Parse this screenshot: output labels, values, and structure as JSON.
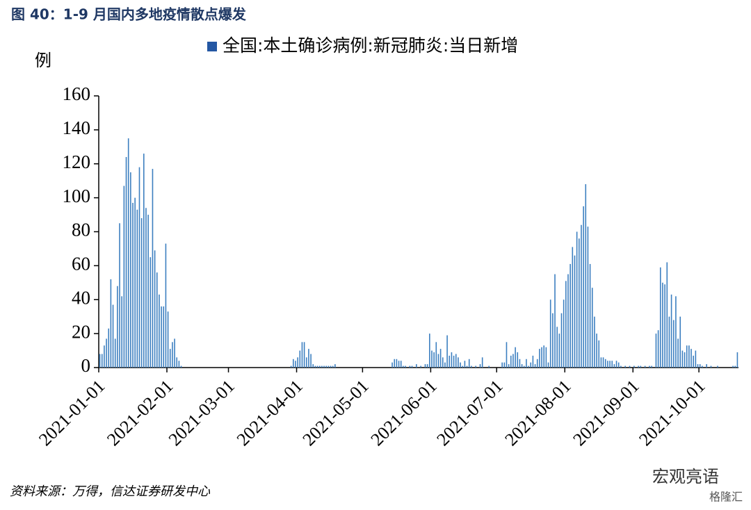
{
  "chart_data": {
    "type": "bar",
    "title": "图 40：1-9 月国内多地疫情散点爆发",
    "y_label": "例",
    "source": "资料来源：万得，信达证券研发中心",
    "watermark": [
      "宏观亮语",
      "格隆汇"
    ],
    "series": [
      {
        "name": "全国:本土确诊病例:新冠肺炎:当日新增",
        "color": "#3c7fc0",
        "legend_color": "#2457a3",
        "values": [
          8,
          8,
          13,
          17,
          23,
          52,
          37,
          17,
          48,
          85,
          42,
          107,
          124,
          135,
          115,
          97,
          100,
          93,
          118,
          88,
          126,
          94,
          90,
          65,
          117,
          69,
          56,
          43,
          36,
          36,
          73,
          33,
          11,
          15,
          17,
          6,
          4,
          1,
          0,
          0,
          0,
          0,
          0,
          0,
          0,
          0,
          0,
          0,
          0,
          0,
          0,
          0,
          0,
          0,
          0,
          0,
          0,
          0,
          0,
          0,
          0,
          0,
          0,
          0,
          0,
          0,
          0,
          0,
          0,
          0,
          0,
          0,
          0,
          0,
          0,
          0,
          0,
          0,
          0,
          0,
          0,
          0,
          0,
          0,
          0,
          0,
          0,
          1,
          5,
          4,
          6,
          10,
          15,
          15,
          6,
          11,
          8,
          2,
          1,
          1,
          1,
          1,
          1,
          1,
          1,
          1,
          1,
          2,
          0,
          0,
          0,
          0,
          0,
          0,
          0,
          0,
          0,
          0,
          0,
          0,
          0,
          0,
          0,
          0,
          0,
          0,
          0,
          0,
          0,
          0,
          0,
          0,
          0,
          3,
          5,
          5,
          4,
          4,
          1,
          1,
          0,
          1,
          1,
          0,
          2,
          0,
          1,
          0,
          2,
          2,
          20,
          10,
          9,
          15,
          8,
          11,
          6,
          3,
          19,
          7,
          9,
          7,
          8,
          6,
          3,
          1,
          4,
          1,
          5,
          1,
          0,
          1,
          0,
          2,
          6,
          0,
          0,
          1,
          0,
          0,
          0,
          0,
          0,
          3,
          3,
          15,
          2,
          7,
          8,
          12,
          9,
          5,
          2,
          1,
          5,
          1,
          3,
          7,
          2,
          5,
          11,
          12,
          13,
          12,
          3,
          40,
          32,
          55,
          24,
          20,
          32,
          40,
          51,
          55,
          61,
          71,
          66,
          80,
          76,
          84,
          95,
          108,
          83,
          61,
          47,
          30,
          20,
          16,
          6,
          6,
          5,
          4,
          4,
          4,
          2,
          4,
          3,
          1,
          0,
          1,
          0,
          1,
          0,
          1,
          0,
          1,
          1,
          0,
          1,
          0,
          1,
          1,
          0,
          20,
          22,
          59,
          50,
          49,
          62,
          30,
          43,
          28,
          42,
          17,
          30,
          10,
          9,
          13,
          13,
          11,
          7,
          10,
          2,
          2,
          1,
          0,
          2,
          0,
          1,
          0,
          0,
          1,
          0,
          0,
          0,
          0,
          0,
          0,
          1,
          1,
          9
        ]
      }
    ],
    "x": [
      "2021-01-01",
      "2021-01-02",
      "2021-01-03",
      "2021-01-04",
      "2021-01-05",
      "2021-01-06",
      "2021-01-07",
      "2021-01-08",
      "2021-01-09",
      "2021-01-10",
      "2021-01-11",
      "2021-01-12",
      "2021-01-13",
      "2021-01-14",
      "2021-01-15",
      "2021-01-16",
      "2021-01-17",
      "2021-01-18",
      "2021-01-19",
      "2021-01-20",
      "2021-01-21",
      "2021-01-22",
      "2021-01-23",
      "2021-01-24",
      "2021-01-25",
      "2021-01-26",
      "2021-01-27",
      "2021-01-28",
      "2021-01-29",
      "2021-01-30",
      "2021-01-31",
      "2021-02-01",
      "2021-02-02",
      "2021-02-03",
      "2021-02-04",
      "2021-02-05",
      "2021-02-06",
      "2021-02-07",
      "2021-02-08",
      "2021-02-09",
      "2021-02-10",
      "2021-02-11",
      "2021-02-12",
      "2021-02-13",
      "2021-02-14",
      "2021-02-15",
      "2021-02-16",
      "2021-02-17",
      "2021-02-18",
      "2021-02-19",
      "2021-02-20",
      "2021-02-21",
      "2021-02-22",
      "2021-02-23",
      "2021-02-24",
      "2021-02-25",
      "2021-02-26",
      "2021-02-27",
      "2021-02-28",
      "2021-03-01",
      "2021-03-02",
      "2021-03-03",
      "2021-03-04",
      "2021-03-05",
      "2021-03-06",
      "2021-03-07",
      "2021-03-08",
      "2021-03-09",
      "2021-03-10",
      "2021-03-11",
      "2021-03-12",
      "2021-03-13",
      "2021-03-14",
      "2021-03-15",
      "2021-03-16",
      "2021-03-17",
      "2021-03-18",
      "2021-03-19",
      "2021-03-20",
      "2021-03-21",
      "2021-03-22",
      "2021-03-23",
      "2021-03-24",
      "2021-03-25",
      "2021-03-26",
      "2021-03-27",
      "2021-03-28",
      "2021-03-29",
      "2021-03-30",
      "2021-03-31",
      "2021-04-01",
      "2021-04-02",
      "2021-04-03",
      "2021-04-04",
      "2021-04-05",
      "2021-04-06",
      "2021-04-07",
      "2021-04-08",
      "2021-04-09",
      "2021-04-10",
      "2021-04-11",
      "2021-04-12",
      "2021-04-13",
      "2021-04-14",
      "2021-04-15",
      "2021-04-16",
      "2021-04-17",
      "2021-04-18",
      "2021-04-19",
      "2021-04-20",
      "2021-04-21",
      "2021-04-22",
      "2021-04-23",
      "2021-04-24",
      "2021-04-25",
      "2021-04-26",
      "2021-04-27",
      "2021-04-28",
      "2021-04-29",
      "2021-04-30",
      "2021-05-01",
      "2021-05-02",
      "2021-05-03",
      "2021-05-04",
      "2021-05-05",
      "2021-05-06",
      "2021-05-07",
      "2021-05-08",
      "2021-05-09",
      "2021-05-10",
      "2021-05-11",
      "2021-05-12",
      "2021-05-13",
      "2021-05-14",
      "2021-05-15",
      "2021-05-16",
      "2021-05-17",
      "2021-05-18",
      "2021-05-19",
      "2021-05-20",
      "2021-05-21",
      "2021-05-22",
      "2021-05-23",
      "2021-05-24",
      "2021-05-25",
      "2021-05-26",
      "2021-05-27",
      "2021-05-28",
      "2021-05-29",
      "2021-05-30",
      "2021-05-31",
      "2021-06-01",
      "2021-06-02",
      "2021-06-03",
      "2021-06-04",
      "2021-06-05",
      "2021-06-06",
      "2021-06-07",
      "2021-06-08",
      "2021-06-09",
      "2021-06-10",
      "2021-06-11",
      "2021-06-12",
      "2021-06-13",
      "2021-06-14",
      "2021-06-15",
      "2021-06-16",
      "2021-06-17",
      "2021-06-18",
      "2021-06-19",
      "2021-06-20",
      "2021-06-21",
      "2021-06-22",
      "2021-06-23",
      "2021-06-24",
      "2021-06-25",
      "2021-06-26",
      "2021-06-27",
      "2021-06-28",
      "2021-06-29",
      "2021-06-30",
      "2021-07-01",
      "2021-07-02",
      "2021-07-03",
      "2021-07-04",
      "2021-07-05",
      "2021-07-06",
      "2021-07-07",
      "2021-07-08",
      "2021-07-09",
      "2021-07-10",
      "2021-07-11",
      "2021-07-12",
      "2021-07-13",
      "2021-07-14",
      "2021-07-15",
      "2021-07-16",
      "2021-07-17",
      "2021-07-18",
      "2021-07-19",
      "2021-07-20",
      "2021-07-21",
      "2021-07-22",
      "2021-07-23",
      "2021-07-24",
      "2021-07-25",
      "2021-07-26",
      "2021-07-27",
      "2021-07-28",
      "2021-07-29",
      "2021-07-30",
      "2021-07-31",
      "2021-08-01",
      "2021-08-02",
      "2021-08-03",
      "2021-08-04",
      "2021-08-05",
      "2021-08-06",
      "2021-08-07",
      "2021-08-08",
      "2021-08-09",
      "2021-08-10",
      "2021-08-11",
      "2021-08-12",
      "2021-08-13",
      "2021-08-14",
      "2021-08-15",
      "2021-08-16",
      "2021-08-17",
      "2021-08-18",
      "2021-08-19",
      "2021-08-20",
      "2021-08-21",
      "2021-08-22",
      "2021-08-23",
      "2021-08-24",
      "2021-08-25",
      "2021-08-26",
      "2021-08-27",
      "2021-08-28",
      "2021-08-29",
      "2021-08-30",
      "2021-08-31",
      "2021-09-01",
      "2021-09-02",
      "2021-09-03",
      "2021-09-04",
      "2021-09-05",
      "2021-09-06",
      "2021-09-07",
      "2021-09-08",
      "2021-09-09",
      "2021-09-10",
      "2021-09-11",
      "2021-09-12",
      "2021-09-13",
      "2021-09-14",
      "2021-09-15",
      "2021-09-16",
      "2021-09-17",
      "2021-09-18",
      "2021-09-19",
      "2021-09-20",
      "2021-09-21",
      "2021-09-22",
      "2021-09-23",
      "2021-09-24",
      "2021-09-25",
      "2021-09-26",
      "2021-09-27",
      "2021-09-28",
      "2021-09-29",
      "2021-09-30",
      "2021-10-01",
      "2021-10-02",
      "2021-10-03",
      "2021-10-04",
      "2021-10-05",
      "2021-10-06",
      "2021-10-07",
      "2021-10-08",
      "2021-10-09",
      "2021-10-10",
      "2021-10-11",
      "2021-10-12",
      "2021-10-13",
      "2021-10-14",
      "2021-10-15",
      "2021-10-16",
      "2021-10-17",
      "2021-10-18"
    ],
    "xlim": [
      "2021-01-01",
      "2021-10-19"
    ],
    "xticks": [
      "2021-01-01",
      "2021-02-01",
      "2021-03-01",
      "2021-04-01",
      "2021-05-01",
      "2021-06-01",
      "2021-07-01",
      "2021-08-01",
      "2021-09-01",
      "2021-10-01"
    ],
    "ylim": [
      0,
      160
    ],
    "yticks": [
      0,
      20,
      40,
      60,
      80,
      100,
      120,
      140,
      160
    ],
    "grid": false,
    "legend": "top"
  }
}
